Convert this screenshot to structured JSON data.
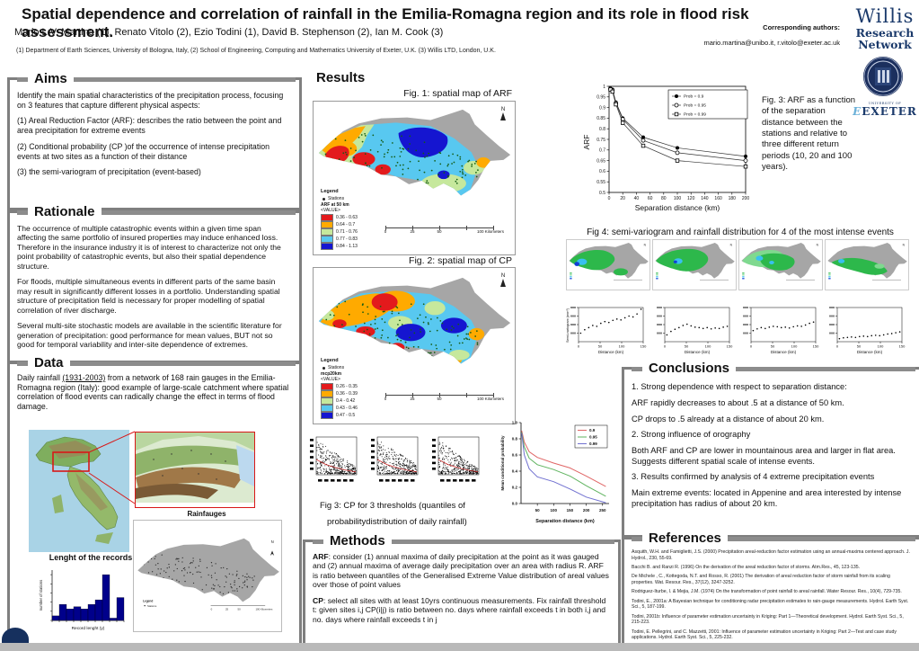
{
  "header": {
    "title": "Spatial dependence and correlation of rainfall in the Emilia-Romagna region and its role in flood risk assessment.",
    "authors": "Mario L.V. Martina (1), Renato Vitolo (2), Ezio Todini (1), David B. Stephenson (2), Ian M. Cook (3)",
    "affiliations": "(1) Department of Earth Sciences, University of Bologna, Italy, (2) School of Engineering, Computing and Mathematics University of Exeter, U.K. (3) Willis LTD, London, U.K.",
    "corresponding_label": "Corresponding  authors:",
    "corresponding_emails": "mario.martina@unibo.it, r.vitolo@exeter.ac.uk"
  },
  "logos": {
    "willis_line1": "Willis",
    "willis_line2": "Research",
    "willis_line3": "Network",
    "exeter_top": "UNIVERSITY OF",
    "exeter": "EXETER"
  },
  "aims": {
    "title": "Aims",
    "p1": "Identify the main spatial characteristics of the precipitation process, focusing on 3 features that capture different physical aspects:",
    "p2": "(1) Areal Reduction Factor (ARF): describes the ratio between the point and area precipitation for extreme events",
    "p3": "(2) Conditional probability (CP )of the occurrence of intense precipitation events at two sites as a function of their distance",
    "p4": "(3) the semi-variogram of precipitation (event-based)"
  },
  "rationale": {
    "title": "Rationale",
    "p1": "The occurrence of multiple catastrophic events within a given time span affecting the same portfolio of insured properties may induce enhanced loss. Therefore in the insurance industry it is of interest to characterize not only the point probability of catastrophic events, but also their spatial dependence structure.",
    "p2": "For floods, multiple simultaneous events in different parts of the same basin may result in significantly different losses in a portfolio. Understanding spatial structure of precipitation field is necessary for proper modelling of spatial correlation of river discharge.",
    "p3": "Several multi-site stochastic models are available in the scientific literature for generation of precipitation: good performance for mean values, BUT not so good for temporal variability and inter-site dependence of extremes."
  },
  "data_section": {
    "title": "Data",
    "p1_pre": "Daily rainfall ",
    "p1_underline": "(1931-2003)",
    "p1_post": " from a network of 168 rain gauges in the Emilia-Romagna region (Italy): good example of large-scale catchment where spatial correlation of flood events can radically change the effect in terms of flood damage.",
    "rainfauges_label": "Rainfauges",
    "records_label": "Lenght of the records"
  },
  "results": {
    "title": "Results",
    "fig1_caption": "Fig. 1: spatial map of ARF",
    "fig2_caption": "Fig. 2: spatial map of CP",
    "fig3cp_caption_line1": "Fig 3: CP for 3 thresholds (quantiles of",
    "fig3cp_caption_line2": "probabilitydistribution of daily rainfall)",
    "fig3arf_caption": "Fig. 3: ARF as a function of the separation distance between the stations and relative to three different return periods (10, 20 and 100 years).",
    "fig4_caption": "Fig 4: semi-variogram and rainfall distribution for 4 of the most intense events"
  },
  "fig1_legend": {
    "legend_title": "Legend",
    "stations": "Stations",
    "layer": "ARF at 50 km",
    "value": "<VALUE>",
    "classes": [
      {
        "color": "#e31a1c",
        "label": "0.36 - 0.63"
      },
      {
        "color": "#ffaa00",
        "label": "0.64 - 0.7"
      },
      {
        "color": "#c6e89c",
        "label": "0.71 - 0.76"
      },
      {
        "color": "#58c8f0",
        "label": "0.77 - 0.83"
      },
      {
        "color": "#1515d0",
        "label": "0.84 - 1.13"
      }
    ]
  },
  "fig2_legend": {
    "legend_title": "Legend",
    "stations": "Stations",
    "layer": "mcp20km",
    "value": "<VALUE>",
    "classes": [
      {
        "color": "#e31a1c",
        "label": "0.26 - 0.35"
      },
      {
        "color": "#ffaa00",
        "label": "0.36 - 0.39"
      },
      {
        "color": "#c6e89c",
        "label": "0.4 - 0.42"
      },
      {
        "color": "#58c8f0",
        "label": "0.43 - 0.46"
      },
      {
        "color": "#1515d0",
        "label": "0.47 - 0.5"
      }
    ]
  },
  "map_scale": {
    "t0": "0",
    "t1": "25",
    "t2": "50",
    "t3": "100 Kilometers"
  },
  "methods": {
    "title": "Methods",
    "p1_lead": "ARF",
    "p1": ": consider (1) annual maxima of daily precipitation at the point as it was gauged and (2) annual maxima of average daily precipitation over an area with radius R. ARF is ratio between quantiles of the Generalised Extreme Value distribution of areal values over those of point values",
    "p2_lead": "CP",
    "p2": ": select all sites with at least 10yrs continuous measurements. Fix rainfall threshold t: given sites i,j CP(i|j) is ratio between no. days where rainfall exceeds t in both i,j and no. days where rainfall exceeds t in j"
  },
  "conclusions": {
    "title": "Conclusions",
    "items": [
      "1. Strong dependence with respect to separation distance:",
      "ARF rapidly decreases to about .5 at a distance of 50 km.",
      "CP drops to .5 already at a distance of about 20 km.",
      "2. Strong influence of orography",
      "Both ARF and CP are lower in mountainous area and larger in flat area. Suggests different spatial scale of intense events.",
      "3. Results confirmed by analysis of 4 extreme precipitation events",
      "Main extreme events: located in Appenine and area interested by intense precipitation has radius of about 20 km."
    ]
  },
  "references": {
    "title": "References",
    "items": [
      "Asquith, W.H. and Famiglietti, J.S. (2000) Precipitation areal-reduction factor estimation using an annual-maxima centered approach. J. Hydrol., 230, 55-69.",
      "Bacchi B. and Ranzi R. (1996) On the derivation of the areal reduction factor of storms. Atm.Res., 45, 123-135.",
      "De Michele , C., Kottegoda, N.T. and Rosso, R. (2001) The derivation of areal reduction factor of storm rainfall from its scaling properties. Wat. Resour. Res., 37(12), 3247-3252.",
      "Rodriguez-Iturbe, I. & Mejia, J.M. (1974) On the transformation of point rainfall to areal rainfall. Water Resour. Res., 10(4), 729-735.",
      "Todini, E., 2001a: A Bayesian technique for conditioning radar precipitation estimates to rain-gauge measurements. Hydrol. Earth Syst. Sci., 5, 187-199.",
      "Todini, 2001b: Influence of parameter estimation uncertainty in Kriging: Part 1—Theoretical development. Hydrol. Earth Syst. Sci., 5, 215-223.",
      "Todini, E. Pellegrini, and C. Mazzetti, 2001: Influence of parameter estimation uncertainty in Kriging: Part 2—Test and case study applications. Hydrol. Earth Syst. Sci., 5, 225-232."
    ]
  },
  "chart_data": [
    {
      "id": "arf_vs_distance",
      "type": "line",
      "title": "",
      "xlabel": "Separation distance (km)",
      "ylabel": "ARF",
      "xlim": [
        0,
        200
      ],
      "ylim": [
        0.5,
        1.0
      ],
      "xticks": [
        0,
        20,
        40,
        60,
        80,
        100,
        120,
        140,
        160,
        180,
        200
      ],
      "yticks": [
        0.5,
        0.55,
        0.6,
        0.65,
        0.7,
        0.75,
        0.8,
        0.85,
        0.9,
        0.95,
        1
      ],
      "legend_position": "top-right",
      "x": [
        2,
        5,
        10,
        20,
        50,
        100,
        200
      ],
      "series": [
        {
          "name": "Prob = 0.9",
          "marker": "filled-circle",
          "values": [
            0.99,
            0.985,
            0.925,
            0.85,
            0.76,
            0.71,
            0.67
          ]
        },
        {
          "name": "Prob = 0.95",
          "marker": "open-circle",
          "values": [
            0.988,
            0.98,
            0.92,
            0.845,
            0.745,
            0.687,
            0.65
          ]
        },
        {
          "name": "Prob = 0.99",
          "marker": "open-square",
          "values": [
            0.985,
            0.975,
            0.915,
            0.828,
            0.72,
            0.65,
            0.622
          ]
        }
      ]
    },
    {
      "id": "mean_cp_vs_distance",
      "type": "line",
      "xlabel": "Separation distance (km)",
      "ylabel": "Mean conditional probability",
      "xlim": [
        0,
        270
      ],
      "ylim": [
        0,
        1
      ],
      "xticks": [
        50,
        100,
        150,
        200,
        250
      ],
      "yticks": [
        0,
        0.2,
        0.4,
        0.6,
        0.8,
        1.0
      ],
      "legend_position": "top-right",
      "series": [
        {
          "name": "0.9",
          "color": "#e06666",
          "points": [
            [
              2,
              0.9
            ],
            [
              10,
              0.76
            ],
            [
              25,
              0.64
            ],
            [
              50,
              0.57
            ],
            [
              100,
              0.5
            ],
            [
              150,
              0.44
            ],
            [
              200,
              0.34
            ],
            [
              260,
              0.21
            ]
          ]
        },
        {
          "name": "0.95",
          "color": "#5fb35f",
          "points": [
            [
              2,
              0.88
            ],
            [
              10,
              0.7
            ],
            [
              25,
              0.56
            ],
            [
              50,
              0.48
            ],
            [
              100,
              0.42
            ],
            [
              150,
              0.34
            ],
            [
              200,
              0.22
            ],
            [
              260,
              0.09
            ]
          ]
        },
        {
          "name": "0.99",
          "color": "#7070d0",
          "points": [
            [
              2,
              0.87
            ],
            [
              10,
              0.6
            ],
            [
              25,
              0.43
            ],
            [
              50,
              0.33
            ],
            [
              100,
              0.27
            ],
            [
              150,
              0.18
            ],
            [
              200,
              0.08
            ],
            [
              260,
              0.01
            ]
          ]
        }
      ]
    },
    {
      "id": "record_length_histogram",
      "type": "bar",
      "title": "Lenght of the records",
      "xlabel": "Record lenght (y)",
      "ylabel": "number of stations",
      "color": "#00008b",
      "values": [
        2,
        7,
        5,
        6,
        5,
        7,
        9,
        20,
        1,
        10
      ],
      "ylim": [
        0,
        22
      ]
    },
    {
      "id": "semivariogram_events",
      "type": "scatter",
      "xlabel": "Distance (km)",
      "ylabel": "Semi-variogram (mm²)",
      "xlim": [
        0,
        150
      ],
      "ylim": [
        0,
        8000
      ],
      "xticks": [
        0,
        50,
        100,
        150
      ],
      "events": [
        {
          "values": [
            2000,
            2800,
            3300,
            3800,
            3600,
            4300,
            4700,
            4500,
            5000,
            5300,
            5100,
            5600,
            6000,
            5800,
            6500,
            7600
          ]
        },
        {
          "values": [
            1600,
            2400,
            2900,
            3300,
            3800,
            4100,
            3700,
            3400,
            3300,
            3100,
            3300,
            3000,
            3200,
            3100,
            3400,
            3600
          ]
        },
        {
          "values": [
            2600,
            3000,
            3300,
            3100,
            3400,
            3600,
            3500,
            3300,
            3400,
            3200,
            3500,
            3700,
            3600,
            3900,
            4300,
            4600
          ]
        },
        {
          "values": [
            700,
            900,
            1000,
            1100,
            1000,
            1200,
            1300,
            1200,
            1400,
            1500,
            1400,
            1600,
            1800,
            1900,
            2100,
            2300
          ]
        }
      ]
    },
    {
      "id": "cp_scatter_thresholds",
      "type": "scatter",
      "panels": [
        {
          "points": 380,
          "decay": 0.78
        },
        {
          "points": 380,
          "decay": 0.72
        },
        {
          "points": 380,
          "decay": 0.85
        }
      ],
      "trend_color": "#cc2222"
    }
  ]
}
